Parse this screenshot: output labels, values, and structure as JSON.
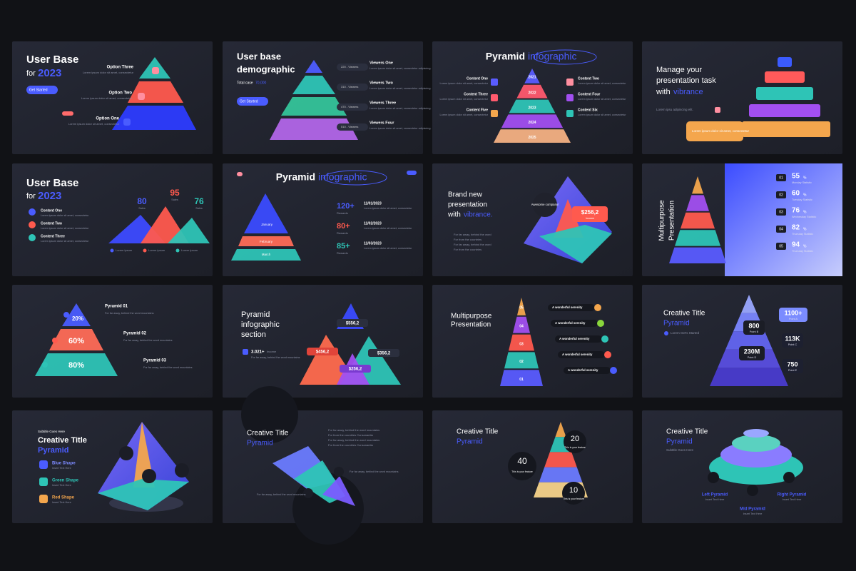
{
  "slides": [
    {
      "title": "User Base",
      "title2": "for",
      "highlight": "2023",
      "button": "Get Started",
      "options": [
        "Option Three",
        "Option Two",
        "Option One"
      ],
      "desc": "Lorem ipsum dolor sit amet, consectetur"
    },
    {
      "title": "User base",
      "title2": "demographic",
      "total": "Total case",
      "total_value": "70,000",
      "button": "Get Started",
      "levels": [
        "220 - Viewers",
        "310 - Viewers",
        "470 - Viewers",
        "510 - Viewers"
      ],
      "items": [
        "Viewers One",
        "Viewers Two",
        "Viewers Three",
        "Viewers Four"
      ],
      "desc": "Lorem ipsum dolor sit amet, consectetur adipiscing."
    },
    {
      "title": "Pyramid",
      "highlight": "infographic",
      "levels": [
        "2021",
        "2022",
        "2023",
        "2024",
        "2025"
      ],
      "items": [
        "Content One",
        "Content Three",
        "Content Five",
        "Content Two",
        "Content Four",
        "Content Six"
      ],
      "desc": "Lorem ipsum dolor sit amet, consectetur"
    },
    {
      "title": "Manage your",
      "title2": "presentation task",
      "title3": "with",
      "highlight": "vibrance",
      "callout": "Lorem ipsum dolor sit amet, consectetur",
      "desc": "Lorem ipsu adipiscing elit."
    },
    {
      "title": "User Base",
      "title2": "for",
      "highlight": "2023",
      "values": [
        "80",
        "95",
        "76"
      ],
      "value_caption": "Sales",
      "items": [
        "Content One",
        "Content Two",
        "Content Three"
      ],
      "desc": "Lorem ipsum dolor sit amet, consectetur",
      "legend": "Lorem ipsum"
    },
    {
      "title": "Pyramid",
      "highlight": "infographic",
      "levels": [
        "January",
        "February",
        "March"
      ],
      "stats": [
        "120+",
        "80+",
        "85+"
      ],
      "stat_caption": "Rewards",
      "dates": [
        "11/01/2023",
        "11/02/2023",
        "11/03/2023"
      ],
      "desc": "Lorem ipsum dolor sit amet, consectetur"
    },
    {
      "title": "Brand new",
      "title2": "presentation",
      "title3": "with",
      "highlight": "vibrance.",
      "bubble": "Awesome company!",
      "value": "$256,2",
      "value_caption": "Income",
      "bullets": [
        "For far away, behind the word",
        "For from the countries",
        "For far away, behind the word",
        "For from the countries"
      ]
    },
    {
      "title": "Multipurpose",
      "title2": "Presentation",
      "numbers": [
        "01",
        "02",
        "03",
        "04",
        "05"
      ],
      "values": [
        "55",
        "60",
        "76",
        "82",
        "94"
      ],
      "unit": "%",
      "captions": [
        "Monday Statistic",
        "Tuesday Statistic",
        "Wednesday Statistic",
        "Thursday Statistic",
        "Thursday Statistic"
      ]
    },
    {
      "levels": [
        "20%",
        "60%",
        "80%"
      ],
      "items": [
        "Pyramid 01",
        "Pyramid 02",
        "Pyramid 03"
      ],
      "desc": "For far away, behind the word mountains"
    },
    {
      "title": "Pyramid",
      "title2": "infographic",
      "title3": "section",
      "stat": "3.021+",
      "caption": "Income",
      "values": [
        "$556,2",
        "$456,2",
        "$356,2",
        "$256,2"
      ],
      "desc": "For far away, behind the word mountains"
    },
    {
      "title": "Multipurpose",
      "title2": "Presentation",
      "levels": [
        "05",
        "04",
        "03",
        "02",
        "01"
      ],
      "item": "A wonderful serenity"
    },
    {
      "title": "Creative Title",
      "highlight": "Pyramid",
      "subtitle": "Lorem Get's Started",
      "values": [
        "1100+",
        "800",
        "113K",
        "230M",
        "750"
      ],
      "captions": [
        "Point A",
        "Point B",
        "Point C",
        "Point D",
        "Point E"
      ]
    },
    {
      "subtitle": "Subtitle Goes Here",
      "title": "Creative Title",
      "highlight": "Pyramid",
      "items": [
        "Blue Shape",
        "Green Shape",
        "Red Shape"
      ],
      "desc": "Insert Text Here"
    },
    {
      "title": "Creative Title",
      "highlight": "Pyramid",
      "bullets": [
        "For far away, behind the word mountains",
        "For from the countries Consonantia",
        "For far away, behind the word mountains",
        "For from the countries Consonantia"
      ],
      "notes": [
        "For far away, behind the word mountains",
        "For far away, behind the word mountains"
      ]
    },
    {
      "title": "Creative Title",
      "highlight": "Pyramid",
      "values": [
        "40",
        "20",
        "10"
      ],
      "caption": "This is your feature"
    },
    {
      "title": "Creative Title",
      "highlight": "Pyramid",
      "subtitle": "Subtitle Goes Here",
      "items": [
        "Left Pyramid",
        "Mid Pyramid",
        "Right Pyramid"
      ],
      "desc": "Insert Text Here"
    }
  ]
}
